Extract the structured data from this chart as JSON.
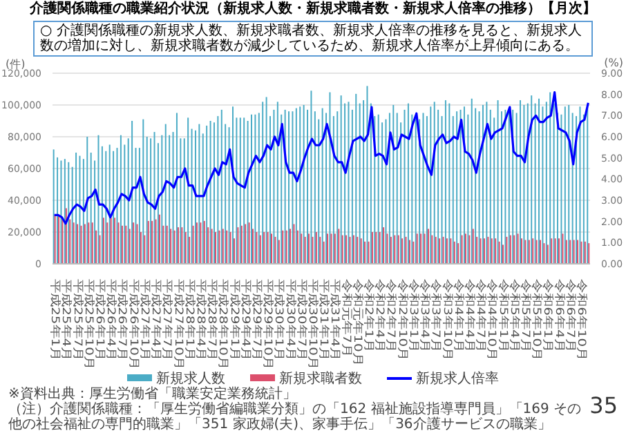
{
  "chart_data": {
    "type": "bar",
    "title": "介護関係職種の職業紹介状況（新規求人数・新規求職者数・新規求人倍率の推移）【月次】",
    "subtitle": "○ 介護関係職種の新規求人数、新規求職者数、新規求人倍率の推移を見ると、新規求人数の増加に対し、新規求職者数が減少しているため、新規求人倍率が上昇傾向にある。",
    "ylabel": "(件)",
    "y2label": "(%)",
    "categories": [
      "平成25年1月",
      null,
      null,
      "平成25年4月",
      null,
      null,
      "平成25年7月",
      null,
      null,
      "平成25年10月",
      null,
      null,
      "平成26年1月",
      null,
      null,
      "平成26年4月",
      null,
      null,
      "平成26年7月",
      null,
      null,
      "平成26年10月",
      null,
      null,
      "平成27年1月",
      null,
      null,
      "平成27年4月",
      null,
      null,
      "平成27年7月",
      null,
      null,
      "平成27年10月",
      null,
      null,
      "平成28年1月",
      null,
      null,
      "平成28年4月",
      null,
      null,
      "平成28年7月",
      null,
      null,
      "平成28年10月",
      null,
      null,
      "平成29年1月",
      null,
      null,
      "平成29年4月",
      null,
      null,
      "平成29年7月",
      null,
      null,
      "平成29年10月",
      null,
      null,
      "平成30年1月",
      null,
      null,
      "平成30年4月",
      null,
      null,
      "平成30年7月",
      null,
      null,
      "平成30年10月",
      null,
      null,
      "平成31年1月",
      null,
      null,
      "平成31年4月",
      null,
      null,
      "令和元年7月",
      null,
      null,
      "令和元年10月",
      null,
      null,
      "令和2年1月",
      null,
      null,
      "令和2年4月",
      null,
      null,
      "令和2年7月",
      null,
      null,
      "令和2年10月",
      null,
      null,
      "令和3年1月",
      null,
      null,
      "令和3年4月",
      null,
      null,
      "令和3年7月",
      null,
      null,
      "令和3年10月",
      null,
      null,
      "令和4年1月",
      null,
      null,
      "令和4年4月",
      null,
      null,
      "令和4年7月",
      null,
      null,
      "令和4年10月",
      null,
      null,
      "令和5年1月",
      null,
      null,
      "令和5年4月",
      null,
      null,
      "令和5年7月",
      null,
      null,
      "令和5年10月",
      null,
      null,
      "令和6年1月",
      null,
      null,
      "令和6年4月",
      null,
      null,
      "令和6年7月",
      null,
      null,
      "令和6年10月",
      null,
      null
    ],
    "series": [
      {
        "name": "新規求人数",
        "color": "#4bacc6",
        "values": [
          72000,
          67000,
          65000,
          66000,
          64000,
          61000,
          70000,
          68000,
          66000,
          80000,
          70000,
          65000,
          81000,
          74000,
          71000,
          75000,
          71000,
          73000,
          81000,
          75000,
          79000,
          90000,
          73000,
          73000,
          91000,
          80000,
          79000,
          83000,
          76000,
          81000,
          88000,
          81000,
          83000,
          95000,
          79000,
          79000,
          92000,
          85000,
          84000,
          88000,
          82000,
          87000,
          90000,
          89000,
          93000,
          97000,
          88000,
          86000,
          99000,
          92000,
          92000,
          92000,
          90000,
          94000,
          94000,
          95000,
          102000,
          105000,
          93000,
          97000,
          102000,
          94000,
          97000,
          96000,
          96000,
          98000,
          99000,
          100000,
          97000,
          109000,
          96000,
          91000,
          98000,
          95000,
          108000,
          93000,
          96000,
          106000,
          101000,
          102000,
          97000,
          107000,
          101000,
          103000,
          112000,
          101000,
          93000,
          94000,
          89000,
          91000,
          95000,
          100000,
          95000,
          89000,
          97000,
          101000,
          94000,
          91000,
          91000,
          95000,
          93000,
          99000,
          102000,
          97000,
          93000,
          103000,
          101000,
          93000,
          96000,
          97000,
          99000,
          94000,
          104000,
          98000,
          96000,
          100000,
          102000,
          97000,
          92000,
          103000,
          96000,
          97000,
          97000,
          97000,
          95000,
          103000,
          100000,
          101000,
          106000,
          101000,
          104000,
          99000,
          102000,
          108000,
          101000,
          95000,
          94000,
          99000,
          100000,
          95000,
          93000,
          99000,
          94000,
          98000
        ]
      },
      {
        "name": "新規求職者数",
        "color": "#dc4f6c",
        "values": [
          31000,
          30000,
          29000,
          35000,
          28000,
          26000,
          25000,
          24000,
          25000,
          26000,
          26000,
          21000,
          18000,
          29000,
          26000,
          29000,
          29000,
          26000,
          24000,
          24000,
          22000,
          26000,
          25000,
          20000,
          18000,
          27000,
          27000,
          28000,
          31000,
          24000,
          24000,
          22000,
          21000,
          23000,
          23000,
          20000,
          17000,
          24000,
          26000,
          26000,
          27000,
          23000,
          22000,
          20000,
          21000,
          22000,
          21000,
          20000,
          16000,
          23000,
          24000,
          25000,
          26000,
          22000,
          20000,
          18000,
          20000,
          20000,
          19000,
          17000,
          15000,
          21000,
          21000,
          22000,
          25000,
          21000,
          19000,
          17000,
          19000,
          17000,
          20000,
          17000,
          14000,
          19000,
          19000,
          19000,
          22000,
          18000,
          18000,
          17000,
          18000,
          17000,
          16000,
          14000,
          14000,
          20000,
          20000,
          20000,
          23000,
          19000,
          17000,
          18000,
          18000,
          16000,
          17000,
          15000,
          14000,
          19000,
          19000,
          19000,
          22000,
          18000,
          17000,
          16000,
          17000,
          16000,
          16000,
          14000,
          13000,
          18000,
          19000,
          18000,
          22000,
          17000,
          16000,
          16000,
          17000,
          16000,
          16000,
          14000,
          12000,
          17000,
          18000,
          18000,
          19000,
          16000,
          15000,
          15000,
          16000,
          15000,
          15000,
          13000,
          12000,
          16000,
          16000,
          16000,
          19000,
          15000,
          15000,
          15000,
          15000,
          14000,
          14000,
          13000
        ]
      },
      {
        "name": "新規求人倍率",
        "type": "line",
        "axis": "y2",
        "color": "#0000ff",
        "values": [
          2.3,
          2.3,
          2.2,
          1.9,
          2.3,
          2.6,
          2.8,
          2.7,
          2.5,
          3.1,
          3.2,
          3.5,
          2.8,
          2.8,
          2.6,
          2.2,
          2.6,
          2.9,
          3.3,
          3.2,
          3.0,
          3.6,
          3.6,
          4.1,
          3.3,
          2.9,
          2.8,
          2.6,
          3.2,
          3.4,
          3.9,
          3.8,
          3.6,
          4.1,
          4.1,
          4.5,
          3.7,
          3.7,
          3.2,
          3.2,
          3.2,
          3.7,
          4.1,
          4.5,
          4.2,
          4.8,
          4.7,
          5.4,
          4.1,
          3.8,
          3.7,
          3.6,
          4.3,
          4.7,
          5.1,
          4.8,
          5.1,
          5.6,
          5.4,
          6.0,
          5.6,
          6.6,
          4.8,
          4.3,
          4.3,
          3.9,
          4.4,
          5.0,
          5.5,
          5.9,
          5.6,
          5.6,
          5.9,
          6.6,
          5.9,
          5.1,
          4.8,
          4.8,
          4.3,
          5.1,
          5.8,
          5.9,
          6.0,
          5.8,
          6.1,
          7.4,
          5.1,
          5.2,
          5.1,
          4.7,
          6.2,
          5.4,
          5.5,
          6.1,
          6.0,
          5.9,
          6.6,
          7.1,
          5.6,
          5.1,
          4.6,
          4.2,
          5.6,
          5.9,
          6.1,
          5.7,
          5.8,
          6.0,
          5.9,
          6.8,
          5.3,
          5.2,
          4.9,
          4.3,
          5.2,
          5.9,
          6.6,
          5.9,
          6.2,
          6.3,
          6.4,
          6.9,
          7.4,
          5.3,
          5.1,
          5.1,
          4.8,
          6.0,
          6.8,
          7.0,
          6.7,
          6.7,
          6.9,
          7.0,
          8.1,
          6.4,
          6.3,
          6.2,
          5.8,
          4.7,
          6.2,
          6.7,
          6.8,
          7.6
        ]
      }
    ],
    "ylim": [
      0,
      120000
    ],
    "yticks": [
      {
        "value": 0,
        "label": "0"
      },
      {
        "value": 20000,
        "label": "20,000"
      },
      {
        "value": 40000,
        "label": "40,000"
      },
      {
        "value": 60000,
        "label": "60,000"
      },
      {
        "value": 80000,
        "label": "80,000"
      },
      {
        "value": 100000,
        "label": "100,000"
      },
      {
        "value": 120000,
        "label": "120,000"
      }
    ],
    "y2lim": [
      0,
      9
    ],
    "y2ticks": [
      {
        "value": 0,
        "label": "0.00"
      },
      {
        "value": 1,
        "label": "1.00"
      },
      {
        "value": 2,
        "label": "2.00"
      },
      {
        "value": 3,
        "label": "3.00"
      },
      {
        "value": 4,
        "label": "4.00"
      },
      {
        "value": 5,
        "label": "5.00"
      },
      {
        "value": 6,
        "label": "6.00"
      },
      {
        "value": 7,
        "label": "7.00"
      },
      {
        "value": 8,
        "label": "8.00"
      },
      {
        "value": 9,
        "label": "9.00"
      }
    ],
    "grid": "y",
    "legend": "bottom",
    "marker": "none",
    "line_style": "solid",
    "annotations": [
      "※資料出典：厚生労働省「職業安定業務統計」",
      "（注）介護関係職種：「厚生労働省編職業分類」の「162 福祉施設指導専門員」「169 その他の社会福祉の専門的職業」「351 家政婦(夫)、家事手伝」「36介護サービスの職業」",
      "35"
    ]
  }
}
